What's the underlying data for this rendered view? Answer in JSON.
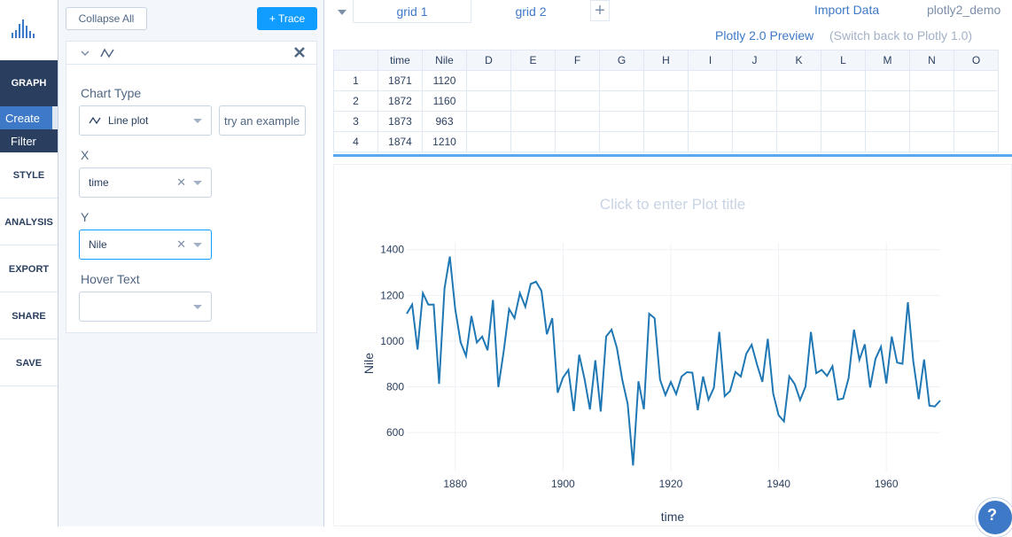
{
  "nav": {
    "items": [
      {
        "key": "graph",
        "label": "GRAPH"
      },
      {
        "key": "style",
        "label": "STYLE"
      },
      {
        "key": "analysis",
        "label": "ANALYSIS"
      },
      {
        "key": "export",
        "label": "EXPORT"
      },
      {
        "key": "share",
        "label": "SHARE"
      },
      {
        "key": "save",
        "label": "SAVE"
      }
    ],
    "sub": {
      "create": "Create",
      "filter": "Filter"
    }
  },
  "panel": {
    "collapse_label": "Collapse All",
    "add_trace_label": "+ Trace",
    "trace": {
      "chart_type_label": "Chart Type",
      "chart_type_value": "Line plot",
      "example_label": "try an example",
      "x_label": "X",
      "x_value": "time",
      "y_label": "Y",
      "y_value": "Nile",
      "hover_label": "Hover Text",
      "hover_value": ""
    }
  },
  "topbar": {
    "tabs": [
      {
        "label": "grid 1"
      },
      {
        "label": "grid 2"
      }
    ],
    "add_tab": "+",
    "import_label": "Import Data",
    "user": "plotly2_demo",
    "preview_label": "Plotly 2.0 Preview",
    "switch_label": "(Switch back to Plotly 1.0)"
  },
  "grid": {
    "columns": [
      "time",
      "Nile",
      "D",
      "E",
      "F",
      "G",
      "H",
      "I",
      "J",
      "K",
      "L",
      "M",
      "N",
      "O"
    ],
    "rows": [
      {
        "index": "1",
        "cells": [
          "1871",
          "1120"
        ]
      },
      {
        "index": "2",
        "cells": [
          "1872",
          "1160"
        ]
      },
      {
        "index": "3",
        "cells": [
          "1873",
          "963"
        ]
      },
      {
        "index": "4",
        "cells": [
          "1874",
          "1210"
        ]
      }
    ]
  },
  "plot": {
    "title_placeholder": "Click to enter Plot title",
    "help_label": "?"
  },
  "colors": {
    "line": "#1f77b4",
    "accent": "#119dff",
    "nav_dark": "#2a3f5f"
  },
  "chart_data": {
    "type": "line",
    "title": "",
    "xlabel": "time",
    "ylabel": "Nile",
    "xticks": [
      1880,
      1900,
      1920,
      1940,
      1960
    ],
    "yticks": [
      600,
      800,
      1000,
      1200,
      1400
    ],
    "xlim": [
      1871,
      1970
    ],
    "ylim": [
      430,
      1430
    ],
    "grid": true,
    "x": [
      1871,
      1872,
      1873,
      1874,
      1875,
      1876,
      1877,
      1878,
      1879,
      1880,
      1881,
      1882,
      1883,
      1884,
      1885,
      1886,
      1887,
      1888,
      1889,
      1890,
      1891,
      1892,
      1893,
      1894,
      1895,
      1896,
      1897,
      1898,
      1899,
      1900,
      1901,
      1902,
      1903,
      1904,
      1905,
      1906,
      1907,
      1908,
      1909,
      1910,
      1911,
      1912,
      1913,
      1914,
      1915,
      1916,
      1917,
      1918,
      1919,
      1920,
      1921,
      1922,
      1923,
      1924,
      1925,
      1926,
      1927,
      1928,
      1929,
      1930,
      1931,
      1932,
      1933,
      1934,
      1935,
      1936,
      1937,
      1938,
      1939,
      1940,
      1941,
      1942,
      1943,
      1944,
      1945,
      1946,
      1947,
      1948,
      1949,
      1950,
      1951,
      1952,
      1953,
      1954,
      1955,
      1956,
      1957,
      1958,
      1959,
      1960,
      1961,
      1962,
      1963,
      1964,
      1965,
      1966,
      1967,
      1968,
      1969,
      1970
    ],
    "series": [
      {
        "name": "Nile",
        "values": [
          1120,
          1160,
          963,
          1210,
          1160,
          1160,
          813,
          1230,
          1370,
          1140,
          995,
          935,
          1110,
          994,
          1020,
          960,
          1180,
          799,
          958,
          1140,
          1100,
          1210,
          1150,
          1250,
          1260,
          1220,
          1030,
          1100,
          774,
          840,
          874,
          694,
          940,
          833,
          701,
          916,
          692,
          1020,
          1050,
          969,
          831,
          726,
          456,
          824,
          702,
          1120,
          1100,
          832,
          764,
          821,
          768,
          845,
          864,
          862,
          698,
          845,
          744,
          796,
          1040,
          759,
          781,
          865,
          845,
          944,
          984,
          897,
          822,
          1010,
          771,
          676,
          649,
          846,
          812,
          742,
          801,
          1040,
          860,
          874,
          848,
          890,
          744,
          749,
          838,
          1050,
          918,
          986,
          797,
          923,
          975,
          815,
          1020,
          906,
          901,
          1170,
          912,
          746,
          919,
          718,
          714,
          740
        ]
      }
    ]
  }
}
